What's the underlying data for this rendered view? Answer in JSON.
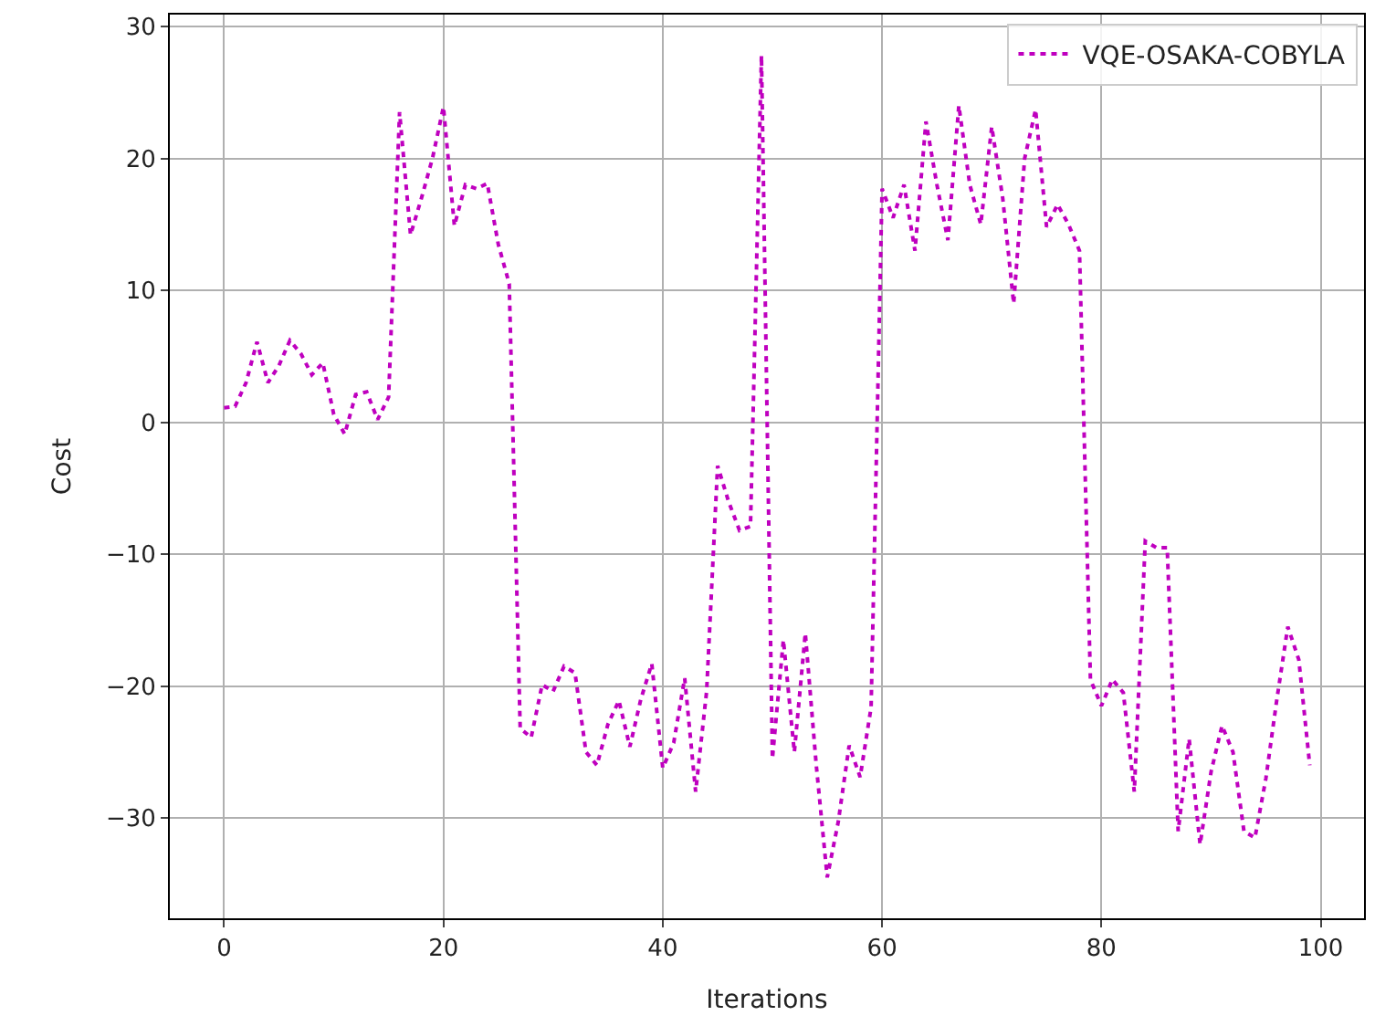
{
  "chart_data": {
    "type": "line",
    "xlabel": "Iterations",
    "ylabel": "Cost",
    "x": [
      0,
      1,
      2,
      3,
      4,
      5,
      6,
      7,
      8,
      9,
      10,
      11,
      12,
      13,
      14,
      15,
      16,
      17,
      18,
      19,
      20,
      21,
      22,
      23,
      24,
      25,
      26,
      27,
      28,
      29,
      30,
      31,
      32,
      33,
      34,
      35,
      36,
      37,
      38,
      39,
      40,
      41,
      42,
      43,
      44,
      45,
      46,
      47,
      48,
      49,
      50,
      51,
      52,
      53,
      54,
      55,
      56,
      57,
      58,
      59,
      60,
      61,
      62,
      63,
      64,
      65,
      66,
      67,
      68,
      69,
      70,
      71,
      72,
      73,
      74,
      75,
      76,
      77,
      78,
      79,
      80,
      81,
      82,
      83,
      84,
      85,
      86,
      87,
      88,
      89,
      90,
      91,
      92,
      93,
      94,
      95,
      96,
      97,
      98,
      99
    ],
    "series": [
      {
        "name": "VQE-OSAKA-COBYLA",
        "color": "#bf00bf",
        "values": [
          1.1,
          1.2,
          3,
          6.1,
          3,
          4.3,
          6.2,
          5.2,
          3.6,
          4.5,
          0.6,
          -0.9,
          2.1,
          2.3,
          0.2,
          1.9,
          23.5,
          14.2,
          17,
          20,
          23.9,
          14.9,
          18,
          17.7,
          18.1,
          13.5,
          10.5,
          -23.2,
          -23.9,
          -19.9,
          -20.4,
          -18.5,
          -19,
          -25,
          -26,
          -22.9,
          -21.1,
          -24.6,
          -21,
          -18.3,
          -26.2,
          -24.3,
          -19.4,
          -28,
          -20.4,
          -3.3,
          -6,
          -8.2,
          -7.9,
          27.8,
          -25.5,
          -16.5,
          -25,
          -16,
          -26,
          -34.5,
          -30.3,
          -24.5,
          -26.9,
          -21.6,
          17.7,
          15.5,
          18,
          13,
          22.8,
          18,
          13.8,
          24,
          18,
          15,
          22.4,
          17,
          9,
          20,
          23.7,
          14.8,
          16.5,
          15,
          13,
          -19.5,
          -21.5,
          -19.5,
          -20.5,
          -28,
          -9,
          -9.5,
          -9.5,
          -31,
          -24,
          -32,
          -26.5,
          -23,
          -25,
          -31,
          -31.5,
          -27,
          -21,
          -15.5,
          -18,
          -26
        ]
      }
    ],
    "xlim": [
      -4.95,
      103.95
    ],
    "xticks": [
      0,
      20,
      40,
      60,
      80,
      100
    ],
    "ylim": [
      -37.6,
      30.9
    ],
    "yticks": [
      -30,
      -20,
      -10,
      0,
      10,
      20,
      30
    ],
    "grid": true,
    "legend": "top right",
    "line_style": "dotted",
    "marker": "none"
  }
}
